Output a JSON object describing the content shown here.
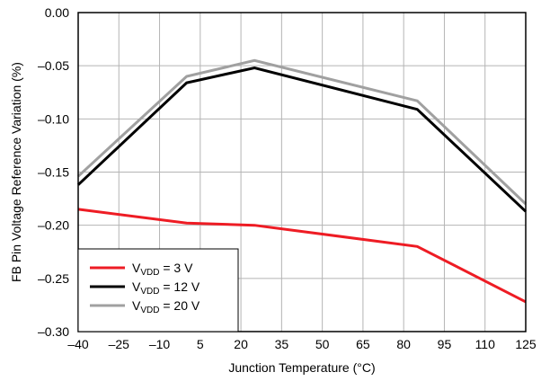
{
  "chart_data": {
    "type": "line",
    "title": "",
    "xlabel": "Junction Temperature (°C)",
    "ylabel": "FB Pin Voltage Reference Variation (%)",
    "xlim": [
      -40,
      125
    ],
    "ylim": [
      -0.3,
      0.0
    ],
    "xticks": [
      -40,
      -25,
      -10,
      5,
      20,
      35,
      50,
      65,
      80,
      95,
      110,
      125
    ],
    "xtick_labels": [
      "–40",
      "–25",
      "–10",
      "5",
      "20",
      "35",
      "50",
      "65",
      "80",
      "95",
      "110",
      "125"
    ],
    "yticks": [
      0,
      -0.05,
      -0.1,
      -0.15,
      -0.2,
      -0.25,
      -0.3
    ],
    "ytick_labels": [
      "0.00",
      "–0.05",
      "–0.10",
      "–0.15",
      "–0.20",
      "–0.25",
      "–0.30"
    ],
    "grid": true,
    "legend_position": "bottom-left",
    "series": [
      {
        "label_prefix": "V",
        "label_sub": "VDD",
        "label_suffix": " = 3 V",
        "color": "#ee1c24",
        "x": [
          -40,
          0,
          25,
          85,
          125
        ],
        "y": [
          -0.185,
          -0.198,
          -0.2,
          -0.22,
          -0.272
        ]
      },
      {
        "label_prefix": "V",
        "label_sub": "VDD",
        "label_suffix": " = 12 V",
        "color": "#000000",
        "x": [
          -40,
          0,
          25,
          85,
          125
        ],
        "y": [
          -0.162,
          -0.066,
          -0.052,
          -0.091,
          -0.187
        ]
      },
      {
        "label_prefix": "V",
        "label_sub": "VDD",
        "label_suffix": " = 20 V",
        "color": "#a0a0a0",
        "x": [
          -40,
          0,
          25,
          85,
          125
        ],
        "y": [
          -0.154,
          -0.06,
          -0.045,
          -0.083,
          -0.18
        ]
      }
    ]
  }
}
